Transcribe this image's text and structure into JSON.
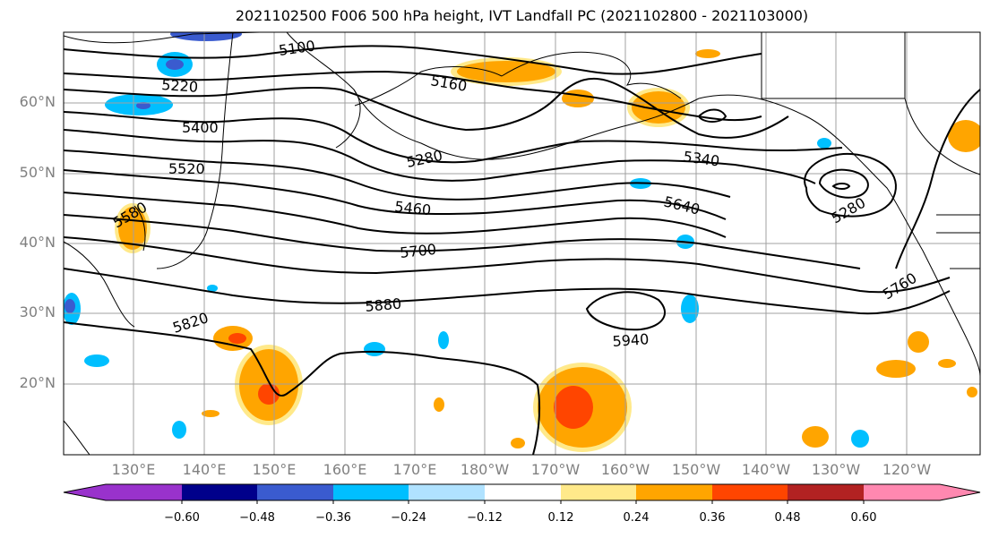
{
  "title": "2021102500 F006 500 hPa height, IVT Landfall PC (2021102800 - 2021103000)",
  "lat_ticks": [
    "60°N",
    "50°N",
    "40°N",
    "30°N",
    "20°N"
  ],
  "lon_ticks": [
    "130°E",
    "140°E",
    "150°E",
    "160°E",
    "170°E",
    "180°W",
    "170°W",
    "160°W",
    "150°W",
    "140°W",
    "130°W",
    "120°W"
  ],
  "contour_labels": [
    "5100",
    "5220",
    "5160",
    "5400",
    "5520",
    "5280",
    "5340",
    "5460",
    "5640",
    "5580",
    "5700",
    "5280",
    "5880",
    "5820",
    "5940",
    "5760"
  ],
  "colorbar": {
    "ticks": [
      "−0.60",
      "−0.48",
      "−0.36",
      "−0.24",
      "−0.12",
      "0.12",
      "0.24",
      "0.36",
      "0.48",
      "0.60"
    ],
    "colors": [
      "#9932cc",
      "#00008b",
      "#3a5bcf",
      "#00bfff",
      "#b0e2ff",
      "#ffffff",
      "#ffe98a",
      "#ffa500",
      "#ff4500",
      "#b22222",
      "#ff88b0"
    ]
  }
}
